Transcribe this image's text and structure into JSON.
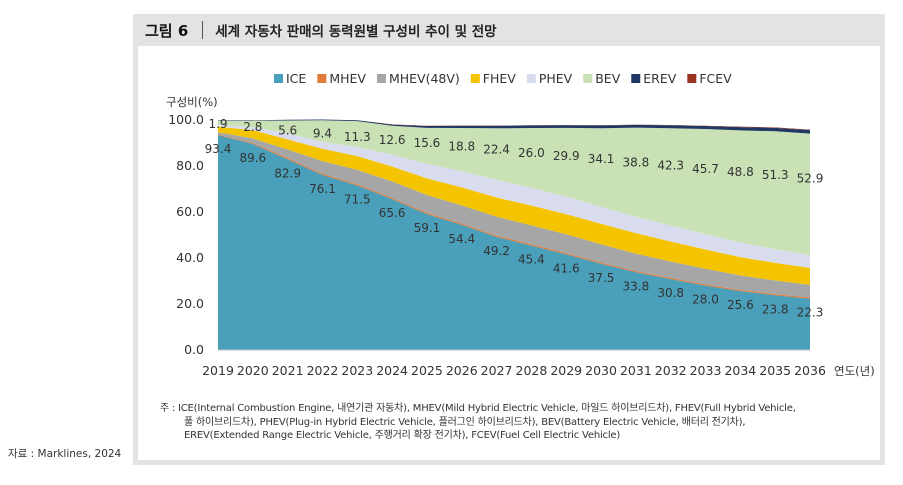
{
  "figure": {
    "label": "그림 6",
    "title": "세계 자동차 판매의 동력원별 구성비 추이 및 전망"
  },
  "colors": {
    "ICE": "#4a9fba",
    "MHEV": "#e07b39",
    "MHEV48": "#a6a6a6",
    "FHEV": "#f5c400",
    "PHEV": "#d9dcef",
    "BEV": "#c9e1b5",
    "EREV": "#1f3864",
    "FCEV": "#9b3322",
    "panel_border": "#e3e3e3"
  },
  "chart_data": {
    "type": "area",
    "stacked": true,
    "ylabel": "구성비(%)",
    "xlabel": "연도(년)",
    "ylim": [
      0,
      100
    ],
    "yticks": [
      "0.0",
      "20.0",
      "40.0",
      "60.0",
      "80.0",
      "100.0"
    ],
    "x": [
      "2019",
      "2020",
      "2021",
      "2022",
      "2023",
      "2024",
      "2025",
      "2026",
      "2027",
      "2028",
      "2029",
      "2030",
      "2031",
      "2032",
      "2033",
      "2034",
      "2035",
      "2036"
    ],
    "legend_position": "top",
    "series": [
      {
        "key": "ICE",
        "name": "ICE",
        "values": [
          93.4,
          89.6,
          82.9,
          76.1,
          71.5,
          65.6,
          59.1,
          54.4,
          49.2,
          45.4,
          41.6,
          37.5,
          33.8,
          30.8,
          28.0,
          25.6,
          23.8,
          22.3
        ]
      },
      {
        "key": "MHEV",
        "name": "MHEV",
        "values": [
          0.3,
          0.4,
          0.5,
          0.5,
          0.5,
          0.5,
          0.5,
          0.5,
          0.5,
          0.5,
          0.5,
          0.5,
          0.5,
          0.5,
          0.5,
          0.5,
          0.5,
          0.5
        ]
      },
      {
        "key": "MHEV48",
        "name": "MHEV(48V)",
        "values": [
          1.0,
          2.0,
          3.8,
          5.5,
          6.3,
          7.2,
          7.8,
          8.0,
          8.3,
          8.3,
          8.2,
          8.0,
          7.6,
          7.2,
          6.8,
          6.3,
          5.9,
          5.5
        ]
      },
      {
        "key": "FHEV",
        "name": "FHEV",
        "values": [
          2.4,
          3.6,
          4.4,
          5.4,
          6.0,
          6.5,
          7.2,
          7.8,
          8.3,
          8.6,
          8.8,
          8.9,
          8.9,
          8.7,
          8.4,
          8.0,
          7.7,
          7.4
        ]
      },
      {
        "key": "PHEV",
        "name": "PHEV",
        "values": [
          0.7,
          1.3,
          2.6,
          3.0,
          3.9,
          5.1,
          6.4,
          7.0,
          7.7,
          7.7,
          7.6,
          7.4,
          7.1,
          6.9,
          6.7,
          6.3,
          5.9,
          5.5
        ]
      },
      {
        "key": "BEV",
        "name": "BEV",
        "values": [
          1.9,
          2.8,
          5.6,
          9.4,
          11.3,
          12.6,
          15.6,
          18.8,
          22.4,
          26.0,
          29.9,
          34.1,
          38.8,
          42.3,
          45.7,
          48.8,
          51.3,
          52.9
        ]
      },
      {
        "key": "EREV",
        "name": "EREV",
        "values": [
          0.2,
          0.2,
          0.3,
          0.3,
          0.4,
          0.5,
          0.8,
          1.0,
          1.1,
          1.1,
          1.1,
          1.2,
          1.2,
          1.3,
          1.3,
          1.4,
          1.5,
          1.5
        ]
      },
      {
        "key": "FCEV",
        "name": "FCEV",
        "values": [
          0.0,
          0.0,
          0.0,
          0.0,
          0.0,
          0.1,
          0.1,
          0.1,
          0.1,
          0.1,
          0.1,
          0.1,
          0.1,
          0.1,
          0.1,
          0.2,
          0.2,
          0.2
        ]
      }
    ],
    "data_labels": {
      "ICE": [
        "93.4",
        "89.6",
        "82.9",
        "76.1",
        "71.5",
        "65.6",
        "59.1",
        "54.4",
        "49.2",
        "45.4",
        "41.6",
        "37.5",
        "33.8",
        "30.8",
        "28.0",
        "25.6",
        "23.8",
        "22.3"
      ],
      "BEV": [
        "1.9",
        "2.8",
        "5.6",
        "9.4",
        "11.3",
        "12.6",
        "15.6",
        "18.8",
        "22.4",
        "26.0",
        "29.9",
        "34.1",
        "38.8",
        "42.3",
        "45.7",
        "48.8",
        "51.3",
        "52.9"
      ]
    }
  },
  "note": {
    "prefix": "주 :",
    "lines": [
      "ICE(Internal Combustion Engine, 내연기관 자동차), MHEV(Mild Hybrid Electric Vehicle, 마일드 하이브리드차), FHEV(Full Hybrid Vehicle,",
      "풀 하이브리드차), PHEV(Plug-in Hybrid Electric Vehicle, 플러그인 하이브리드차), BEV(Battery Electric Vehicle, 배터리 전기차),",
      "EREV(Extended Range Electric Vehicle, 주행거리 확장 전기차), FCEV(Fuel Cell Electric Vehicle)"
    ]
  },
  "source": "자료 : Marklines, 2024"
}
